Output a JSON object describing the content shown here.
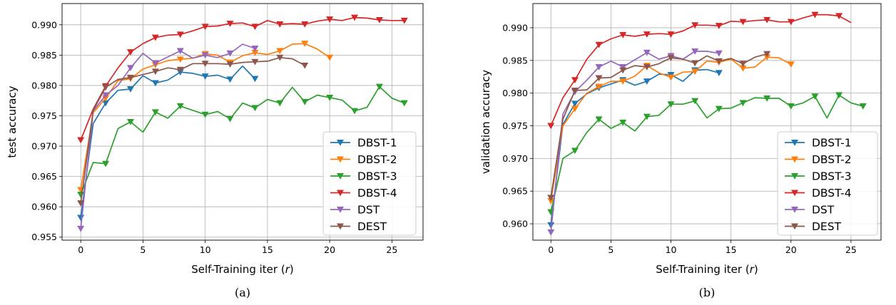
{
  "chart_data": [
    {
      "type": "line",
      "caption": "(a)",
      "xlabel_main": "Self-Training iter (",
      "xlabel_var": "r",
      "xlabel_close": ")",
      "ylabel": "test accuracy",
      "xlim": [
        -1.5,
        27.5
      ],
      "ylim": [
        0.9545,
        0.9935
      ],
      "xticks": [
        0,
        5,
        10,
        15,
        20,
        25
      ],
      "yticks": [
        0.955,
        0.96,
        0.965,
        0.97,
        0.975,
        0.98,
        0.985,
        0.99
      ],
      "ytick_labels": [
        "0.955",
        "0.960",
        "0.965",
        "0.970",
        "0.975",
        "0.980",
        "0.985",
        "0.990"
      ],
      "grid": true,
      "legend_position": "lower-right",
      "marker_every": 2,
      "series": [
        {
          "name": "DBST-1",
          "color": "#1f77b4",
          "values": [
            0.9582,
            0.9737,
            0.9771,
            0.9792,
            0.9794,
            0.9816,
            0.9804,
            0.9809,
            0.9822,
            0.982,
            0.9815,
            0.9817,
            0.981,
            0.9832,
            0.9811
          ]
        },
        {
          "name": "DBST-2",
          "color": "#ff7f0e",
          "values": [
            0.9628,
            0.9755,
            0.9779,
            0.9808,
            0.9811,
            0.9827,
            0.9834,
            0.9841,
            0.9843,
            0.9845,
            0.9852,
            0.985,
            0.9838,
            0.9849,
            0.9854,
            0.9851,
            0.9857,
            0.9868,
            0.9869,
            0.986,
            0.9846
          ]
        },
        {
          "name": "DBST-3",
          "color": "#2ca02c",
          "values": [
            0.962,
            0.9673,
            0.9671,
            0.9729,
            0.974,
            0.9723,
            0.9756,
            0.9746,
            0.9766,
            0.9759,
            0.9752,
            0.9757,
            0.9745,
            0.9771,
            0.9763,
            0.9777,
            0.9771,
            0.9797,
            0.9773,
            0.9784,
            0.978,
            0.9776,
            0.9758,
            0.9764,
            0.9798,
            0.9779,
            0.9771
          ]
        },
        {
          "name": "DBST-4",
          "color": "#d62728",
          "values": [
            0.971,
            0.9761,
            0.9799,
            0.9829,
            0.9855,
            0.9869,
            0.9879,
            0.9883,
            0.9884,
            0.989,
            0.9897,
            0.9898,
            0.9902,
            0.9903,
            0.9897,
            0.9907,
            0.9901,
            0.9902,
            0.9901,
            0.9906,
            0.9909,
            0.9907,
            0.9912,
            0.9911,
            0.9908,
            0.9907,
            0.9907
          ]
        },
        {
          "name": "DST",
          "color": "#9467bd",
          "values": [
            0.9564,
            0.9758,
            0.9784,
            0.98,
            0.9829,
            0.9853,
            0.9837,
            0.9847,
            0.9857,
            0.9845,
            0.985,
            0.9846,
            0.9853,
            0.9868,
            0.9861
          ]
        },
        {
          "name": "DEST",
          "color": "#8c564b",
          "values": [
            0.9606,
            0.9759,
            0.9797,
            0.981,
            0.9813,
            0.9818,
            0.9823,
            0.9829,
            0.9826,
            0.9836,
            0.9836,
            0.9836,
            0.9835,
            0.9838,
            0.9839,
            0.984,
            0.9846,
            0.9844,
            0.9833
          ]
        }
      ]
    },
    {
      "type": "line",
      "caption": "(b)",
      "xlabel_main": "Self-Training iter (",
      "xlabel_var": "r",
      "xlabel_close": ")",
      "ylabel": "validation accuracy",
      "xlim": [
        -1.5,
        27.5
      ],
      "ylim": [
        0.9575,
        0.9937
      ],
      "xticks": [
        0,
        5,
        10,
        15,
        20,
        25
      ],
      "yticks": [
        0.96,
        0.965,
        0.97,
        0.975,
        0.98,
        0.985,
        0.99
      ],
      "ytick_labels": [
        "0.960",
        "0.965",
        "0.970",
        "0.975",
        "0.980",
        "0.985",
        "0.990"
      ],
      "grid": true,
      "legend_position": "lower-right",
      "marker_every": 2,
      "series": [
        {
          "name": "DBST-1",
          "color": "#1f77b4",
          "values": [
            0.9598,
            0.9752,
            0.9784,
            0.9799,
            0.9808,
            0.9814,
            0.982,
            0.9812,
            0.9818,
            0.9829,
            0.9828,
            0.9818,
            0.9835,
            0.9836,
            0.9831
          ]
        },
        {
          "name": "DBST-2",
          "color": "#ff7f0e",
          "values": [
            0.9635,
            0.975,
            0.9776,
            0.98,
            0.981,
            0.9818,
            0.9818,
            0.9826,
            0.9842,
            0.9831,
            0.9824,
            0.9832,
            0.9833,
            0.9849,
            0.9847,
            0.9852,
            0.9838,
            0.984,
            0.9855,
            0.9854,
            0.9844
          ]
        },
        {
          "name": "DBST-3",
          "color": "#2ca02c",
          "values": [
            0.9618,
            0.97,
            0.9712,
            0.974,
            0.976,
            0.9746,
            0.9755,
            0.9742,
            0.9764,
            0.9766,
            0.9783,
            0.9783,
            0.9788,
            0.9762,
            0.9776,
            0.9777,
            0.9785,
            0.9793,
            0.9792,
            0.9792,
            0.978,
            0.9785,
            0.9795,
            0.9762,
            0.9797,
            0.9785,
            0.978
          ]
        },
        {
          "name": "DBST-4",
          "color": "#d62728",
          "values": [
            0.975,
            0.9793,
            0.982,
            0.9852,
            0.9874,
            0.9883,
            0.9889,
            0.9887,
            0.989,
            0.9891,
            0.989,
            0.9895,
            0.9904,
            0.9904,
            0.9903,
            0.991,
            0.9909,
            0.9911,
            0.9912,
            0.9909,
            0.9909,
            0.9915,
            0.992,
            0.992,
            0.9918,
            0.9908
          ]
        },
        {
          "name": "DST",
          "color": "#9467bd",
          "values": [
            0.9587,
            0.9768,
            0.9802,
            0.982,
            0.984,
            0.9849,
            0.984,
            0.9851,
            0.9862,
            0.9852,
            0.9857,
            0.9852,
            0.9864,
            0.9864,
            0.9861
          ]
        },
        {
          "name": "DEST",
          "color": "#8c564b",
          "values": [
            0.964,
            0.976,
            0.9804,
            0.9805,
            0.9823,
            0.9824,
            0.9835,
            0.9842,
            0.984,
            0.9845,
            0.9854,
            0.9852,
            0.9846,
            0.9857,
            0.9849,
            0.9853,
            0.9845,
            0.9855,
            0.986
          ]
        }
      ]
    }
  ]
}
